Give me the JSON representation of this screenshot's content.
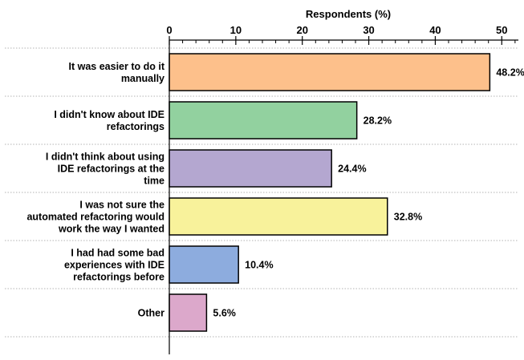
{
  "chart_data": {
    "type": "bar",
    "orientation": "horizontal",
    "title": "",
    "xlabel": "Respondents (%)",
    "ylabel": "",
    "xlim": [
      0,
      52.5
    ],
    "x_ticks": [
      0,
      10,
      20,
      30,
      40,
      50
    ],
    "x_axis_position": "top",
    "grid": "horizontal dotted separators between categories",
    "legend": "none",
    "categories": [
      [
        "It was easier to do it",
        "manually"
      ],
      [
        "I didn't know about IDE",
        "refactorings"
      ],
      [
        "I didn't think about using",
        "IDE refactorings at the",
        "time"
      ],
      [
        "I was not sure the",
        "automated refactoring would",
        "work the way I wanted"
      ],
      [
        "I had had some bad",
        "experiences with IDE",
        "refactorings before"
      ],
      [
        "Other"
      ]
    ],
    "values": [
      48.2,
      28.2,
      24.4,
      32.8,
      10.4,
      5.6
    ],
    "value_labels": [
      "48.2%",
      "28.2%",
      "24.4%",
      "32.8%",
      "10.4%",
      "5.6%"
    ],
    "colors": [
      "#FDC08B",
      "#92D19F",
      "#B4A7D0",
      "#F8F29B",
      "#8DACDE",
      "#DCA8CB"
    ],
    "bar_stroke": "#000000"
  }
}
